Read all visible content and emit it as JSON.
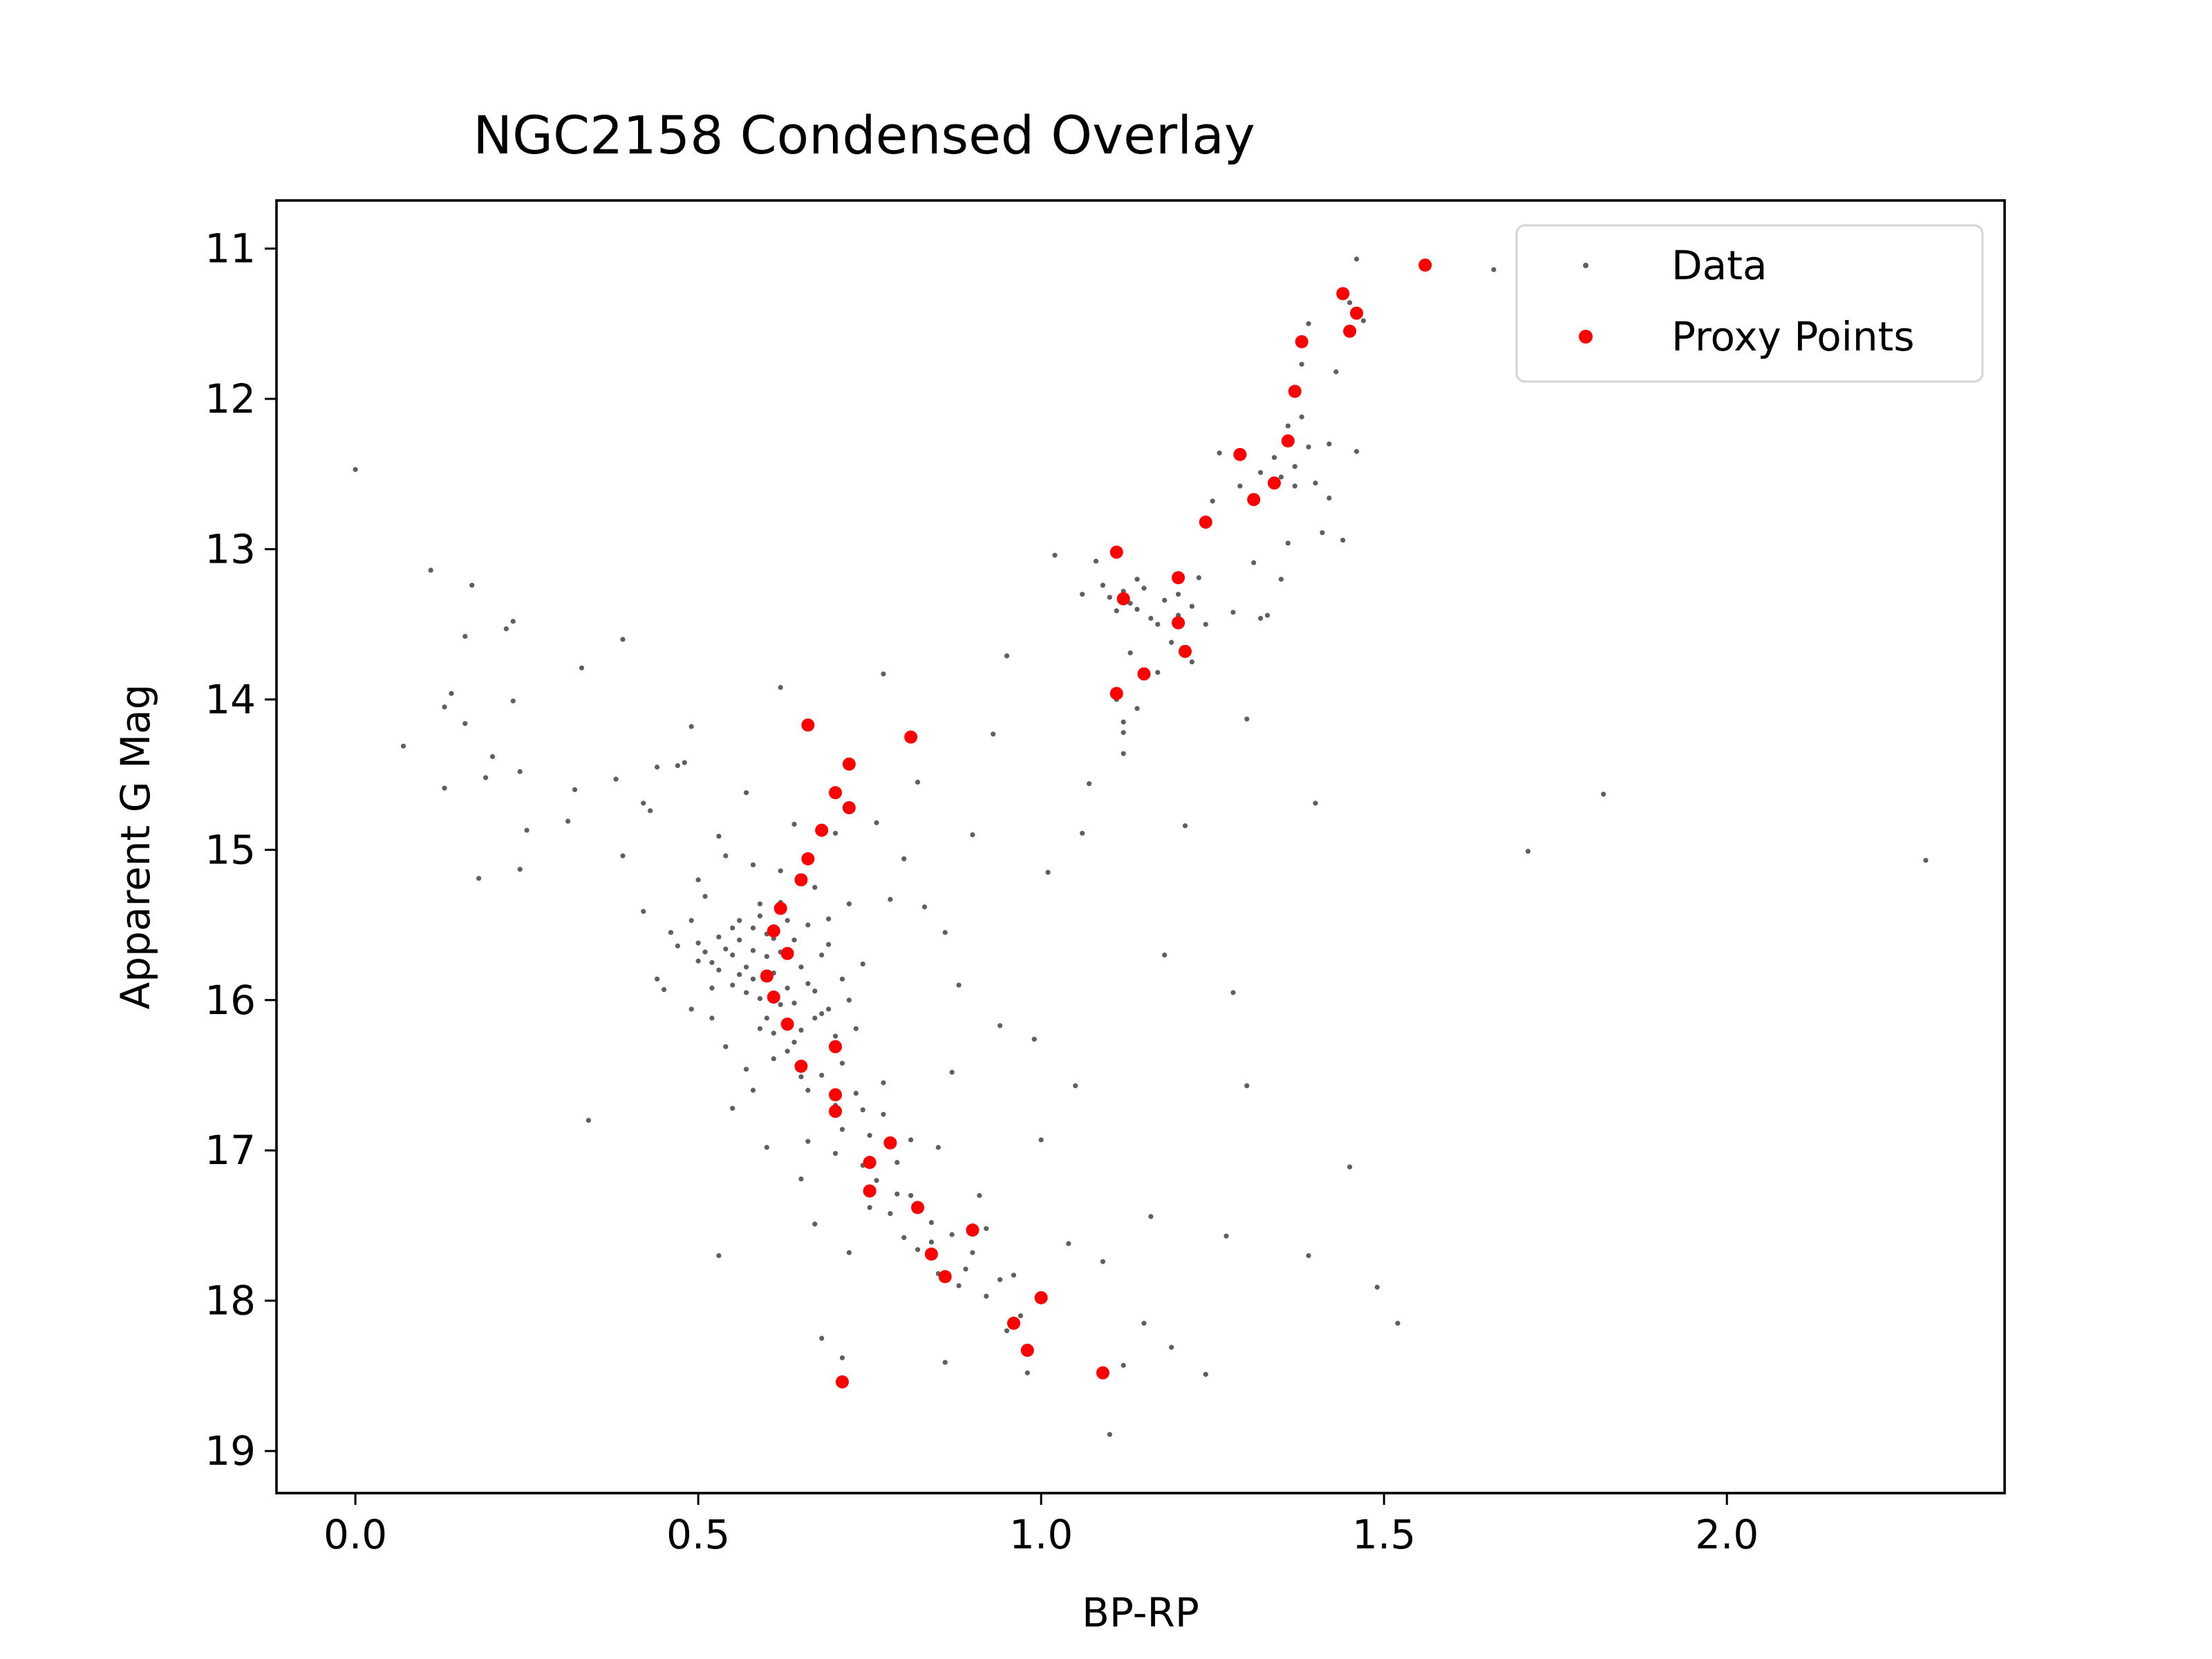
{
  "chart_data": {
    "type": "scatter",
    "title": "NGC2158 Condensed Overlay",
    "xlabel": "BP-RP",
    "ylabel": "Apparent G Mag",
    "xlim": [
      -0.115,
      2.405
    ],
    "ylim": [
      19.28,
      10.68
    ],
    "y_inverted": true,
    "grid": false,
    "legend_placement": "top-right",
    "xticks": [
      0.0,
      0.5,
      1.0,
      1.5,
      2.0
    ],
    "xtick_labels": [
      "0.0",
      "0.5",
      "1.0",
      "1.5",
      "2.0"
    ],
    "yticks": [
      11,
      12,
      13,
      14,
      15,
      16,
      17,
      18,
      19
    ],
    "ytick_labels": [
      "11",
      "12",
      "13",
      "14",
      "15",
      "16",
      "17",
      "18",
      "19"
    ],
    "colors": {
      "data": "#5f5f5f",
      "proxy": "#ff0000",
      "axes": "#000000"
    },
    "series": [
      {
        "name": "Data",
        "marker": "small-dot",
        "color": "#5f5f5f",
        "points": [
          [
            0.0,
            12.47
          ],
          [
            0.07,
            14.31
          ],
          [
            0.11,
            13.14
          ],
          [
            0.13,
            14.05
          ],
          [
            0.14,
            13.96
          ],
          [
            0.13,
            14.59
          ],
          [
            0.16,
            13.58
          ],
          [
            0.16,
            14.16
          ],
          [
            0.17,
            13.24
          ],
          [
            0.18,
            15.19
          ],
          [
            0.2,
            14.38
          ],
          [
            0.19,
            14.52
          ],
          [
            0.22,
            13.53
          ],
          [
            0.23,
            13.48
          ],
          [
            0.23,
            14.01
          ],
          [
            0.24,
            14.48
          ],
          [
            0.24,
            15.13
          ],
          [
            0.25,
            14.87
          ],
          [
            0.31,
            14.81
          ],
          [
            0.32,
            14.6
          ],
          [
            0.33,
            13.79
          ],
          [
            0.34,
            16.8
          ],
          [
            0.38,
            14.53
          ],
          [
            0.39,
            15.04
          ],
          [
            0.39,
            13.6
          ],
          [
            0.42,
            14.69
          ],
          [
            0.42,
            15.41
          ],
          [
            0.43,
            14.74
          ],
          [
            0.44,
            15.86
          ],
          [
            0.44,
            14.45
          ],
          [
            0.45,
            15.93
          ],
          [
            0.46,
            15.55
          ],
          [
            0.47,
            14.44
          ],
          [
            0.47,
            15.64
          ],
          [
            0.48,
            14.42
          ],
          [
            0.49,
            14.18
          ],
          [
            0.49,
            15.47
          ],
          [
            0.49,
            16.06
          ],
          [
            0.5,
            15.2
          ],
          [
            0.5,
            15.74
          ],
          [
            0.51,
            15.31
          ],
          [
            0.52,
            16.12
          ],
          [
            0.52,
            15.92
          ],
          [
            0.53,
            14.91
          ],
          [
            0.53,
            17.7
          ],
          [
            0.54,
            15.04
          ],
          [
            0.54,
            16.31
          ],
          [
            0.55,
            16.72
          ],
          [
            0.55,
            15.52
          ],
          [
            0.56,
            15.83
          ],
          [
            0.57,
            14.62
          ],
          [
            0.57,
            16.46
          ],
          [
            0.58,
            15.1
          ],
          [
            0.58,
            16.6
          ],
          [
            0.59,
            15.36
          ],
          [
            0.59,
            16.19
          ],
          [
            0.6,
            15.71
          ],
          [
            0.6,
            16.98
          ],
          [
            0.61,
            15.59
          ],
          [
            0.61,
            16.39
          ],
          [
            0.62,
            15.14
          ],
          [
            0.62,
            16.03
          ],
          [
            0.62,
            13.92
          ],
          [
            0.63,
            15.47
          ],
          [
            0.64,
            16.28
          ],
          [
            0.64,
            14.83
          ],
          [
            0.65,
            16.51
          ],
          [
            0.65,
            17.19
          ],
          [
            0.66,
            15.89
          ],
          [
            0.66,
            16.94
          ],
          [
            0.67,
            15.25
          ],
          [
            0.67,
            17.49
          ],
          [
            0.68,
            18.25
          ],
          [
            0.68,
            16.09
          ],
          [
            0.69,
            15.63
          ],
          [
            0.7,
            17.02
          ],
          [
            0.7,
            14.89
          ],
          [
            0.71,
            18.38
          ],
          [
            0.71,
            16.42
          ],
          [
            0.72,
            15.36
          ],
          [
            0.72,
            17.68
          ],
          [
            0.73,
            16.19
          ],
          [
            0.74,
            15.76
          ],
          [
            0.74,
            16.73
          ],
          [
            0.75,
            17.38
          ],
          [
            0.76,
            14.82
          ],
          [
            0.77,
            13.83
          ],
          [
            0.77,
            16.55
          ],
          [
            0.78,
            15.33
          ],
          [
            0.79,
            17.29
          ],
          [
            0.8,
            15.06
          ],
          [
            0.81,
            16.93
          ],
          [
            0.82,
            14.55
          ],
          [
            0.83,
            15.38
          ],
          [
            0.84,
            17.61
          ],
          [
            0.85,
            16.98
          ],
          [
            0.86,
            15.55
          ],
          [
            0.86,
            18.41
          ],
          [
            0.87,
            16.48
          ],
          [
            0.88,
            15.9
          ],
          [
            0.89,
            17.79
          ],
          [
            0.9,
            14.9
          ],
          [
            0.91,
            17.3
          ],
          [
            0.92,
            17.97
          ],
          [
            0.93,
            14.23
          ],
          [
            0.94,
            16.17
          ],
          [
            0.95,
            13.71
          ],
          [
            0.96,
            17.83
          ],
          [
            0.97,
            18.1
          ],
          [
            0.98,
            18.48
          ],
          [
            0.99,
            16.26
          ],
          [
            1.0,
            16.93
          ],
          [
            1.01,
            15.15
          ],
          [
            1.02,
            13.04
          ],
          [
            1.04,
            17.62
          ],
          [
            1.05,
            16.57
          ],
          [
            1.06,
            14.89
          ],
          [
            1.07,
            14.56
          ],
          [
            1.08,
            13.08
          ],
          [
            1.09,
            17.74
          ],
          [
            1.1,
            18.89
          ],
          [
            1.11,
            13.41
          ],
          [
            1.12,
            14.15
          ],
          [
            1.12,
            18.43
          ],
          [
            1.13,
            13.69
          ],
          [
            1.14,
            13.2
          ],
          [
            1.15,
            18.15
          ],
          [
            1.16,
            17.44
          ],
          [
            1.17,
            13.5
          ],
          [
            1.18,
            15.7
          ],
          [
            1.19,
            18.31
          ],
          [
            1.2,
            13.3
          ],
          [
            1.21,
            14.84
          ],
          [
            1.22,
            13.75
          ],
          [
            1.23,
            13.19
          ],
          [
            1.24,
            18.49
          ],
          [
            1.25,
            12.68
          ],
          [
            1.26,
            12.36
          ],
          [
            1.27,
            17.57
          ],
          [
            1.28,
            15.95
          ],
          [
            1.29,
            12.58
          ],
          [
            1.3,
            14.13
          ],
          [
            1.3,
            16.57
          ],
          [
            1.31,
            13.09
          ],
          [
            1.32,
            12.49
          ],
          [
            1.33,
            13.44
          ],
          [
            1.34,
            12.39
          ],
          [
            1.35,
            13.2
          ],
          [
            1.36,
            12.96
          ],
          [
            1.37,
            12.45
          ],
          [
            1.38,
            11.77
          ],
          [
            1.39,
            17.7
          ],
          [
            1.4,
            14.69
          ],
          [
            1.41,
            12.89
          ],
          [
            1.42,
            12.66
          ],
          [
            1.43,
            11.82
          ],
          [
            1.44,
            12.94
          ],
          [
            1.45,
            17.11
          ],
          [
            1.46,
            11.07
          ],
          [
            1.46,
            12.35
          ],
          [
            1.49,
            17.91
          ],
          [
            1.52,
            18.15
          ],
          [
            1.66,
            11.14
          ],
          [
            1.71,
            15.01
          ],
          [
            1.82,
            14.63
          ],
          [
            2.29,
            15.07
          ],
          [
            0.5,
            15.62
          ],
          [
            0.51,
            15.68
          ],
          [
            0.52,
            15.75
          ],
          [
            0.53,
            15.8
          ],
          [
            0.53,
            15.58
          ],
          [
            0.54,
            15.66
          ],
          [
            0.55,
            15.7
          ],
          [
            0.55,
            15.9
          ],
          [
            0.56,
            15.47
          ],
          [
            0.56,
            15.6
          ],
          [
            0.57,
            15.78
          ],
          [
            0.57,
            15.95
          ],
          [
            0.58,
            15.52
          ],
          [
            0.58,
            15.67
          ],
          [
            0.58,
            15.86
          ],
          [
            0.59,
            15.44
          ],
          [
            0.59,
            15.99
          ],
          [
            0.6,
            15.56
          ],
          [
            0.6,
            16.12
          ],
          [
            0.61,
            15.82
          ],
          [
            0.61,
            16.22
          ],
          [
            0.62,
            15.68
          ],
          [
            0.62,
            15.35
          ],
          [
            0.63,
            15.92
          ],
          [
            0.63,
            16.34
          ],
          [
            0.64,
            15.6
          ],
          [
            0.64,
            16.02
          ],
          [
            0.65,
            15.78
          ],
          [
            0.65,
            16.2
          ],
          [
            0.66,
            15.5
          ],
          [
            0.66,
            16.6
          ],
          [
            0.67,
            15.94
          ],
          [
            0.67,
            16.12
          ],
          [
            0.68,
            15.7
          ],
          [
            0.68,
            16.5
          ],
          [
            0.69,
            16.06
          ],
          [
            0.69,
            15.46
          ],
          [
            0.7,
            16.24
          ],
          [
            0.7,
            16.7
          ],
          [
            0.71,
            15.86
          ],
          [
            0.71,
            16.86
          ],
          [
            0.72,
            16.0
          ],
          [
            0.73,
            16.62
          ],
          [
            0.74,
            17.1
          ],
          [
            0.75,
            16.9
          ],
          [
            0.76,
            17.2
          ],
          [
            0.77,
            16.76
          ],
          [
            0.78,
            17.42
          ],
          [
            0.79,
            17.08
          ],
          [
            0.8,
            17.58
          ],
          [
            0.81,
            17.3
          ],
          [
            0.82,
            17.66
          ],
          [
            0.84,
            17.48
          ],
          [
            0.85,
            17.82
          ],
          [
            0.87,
            17.56
          ],
          [
            0.88,
            17.9
          ],
          [
            0.9,
            17.68
          ],
          [
            0.92,
            17.52
          ],
          [
            0.94,
            17.86
          ],
          [
            0.95,
            18.2
          ],
          [
            1.12,
            13.28
          ],
          [
            1.13,
            13.36
          ],
          [
            1.14,
            13.4
          ],
          [
            1.15,
            13.26
          ],
          [
            1.16,
            13.46
          ],
          [
            1.1,
            13.32
          ],
          [
            1.18,
            13.34
          ],
          [
            1.2,
            13.44
          ],
          [
            1.22,
            13.38
          ],
          [
            1.09,
            13.24
          ],
          [
            1.06,
            13.3
          ],
          [
            1.24,
            13.5
          ],
          [
            1.28,
            13.42
          ],
          [
            1.32,
            13.46
          ],
          [
            1.11,
            14.0
          ],
          [
            1.12,
            14.22
          ],
          [
            1.12,
            14.36
          ],
          [
            1.14,
            14.06
          ],
          [
            1.17,
            13.82
          ],
          [
            1.19,
            13.62
          ],
          [
            1.35,
            12.52
          ],
          [
            1.37,
            12.58
          ],
          [
            1.39,
            12.32
          ],
          [
            1.4,
            12.56
          ],
          [
            1.42,
            12.3
          ],
          [
            1.39,
            11.5
          ],
          [
            1.45,
            11.36
          ],
          [
            1.47,
            11.48
          ],
          [
            1.36,
            12.18
          ],
          [
            1.38,
            12.12
          ]
        ]
      },
      {
        "name": "Proxy Points",
        "marker": "dot",
        "color": "#ff0000",
        "points": [
          [
            1.56,
            11.11
          ],
          [
            1.44,
            11.3
          ],
          [
            1.46,
            11.43
          ],
          [
            1.45,
            11.55
          ],
          [
            1.38,
            11.62
          ],
          [
            1.37,
            11.95
          ],
          [
            1.36,
            12.28
          ],
          [
            1.29,
            12.37
          ],
          [
            1.34,
            12.56
          ],
          [
            1.31,
            12.67
          ],
          [
            1.24,
            12.82
          ],
          [
            1.11,
            13.02
          ],
          [
            1.2,
            13.19
          ],
          [
            1.12,
            13.33
          ],
          [
            1.2,
            13.49
          ],
          [
            1.21,
            13.68
          ],
          [
            1.15,
            13.83
          ],
          [
            1.11,
            13.96
          ],
          [
            0.66,
            14.17
          ],
          [
            0.81,
            14.25
          ],
          [
            0.72,
            14.43
          ],
          [
            0.7,
            14.62
          ],
          [
            0.72,
            14.72
          ],
          [
            0.68,
            14.87
          ],
          [
            0.66,
            15.06
          ],
          [
            0.65,
            15.2
          ],
          [
            0.62,
            15.39
          ],
          [
            0.61,
            15.54
          ],
          [
            0.63,
            15.69
          ],
          [
            0.6,
            15.84
          ],
          [
            0.61,
            15.98
          ],
          [
            0.63,
            16.16
          ],
          [
            0.7,
            16.31
          ],
          [
            0.65,
            16.44
          ],
          [
            0.7,
            16.63
          ],
          [
            0.7,
            16.74
          ],
          [
            0.78,
            16.95
          ],
          [
            0.75,
            17.08
          ],
          [
            0.75,
            17.27
          ],
          [
            0.82,
            17.38
          ],
          [
            0.9,
            17.53
          ],
          [
            0.84,
            17.69
          ],
          [
            0.86,
            17.84
          ],
          [
            1.0,
            17.98
          ],
          [
            0.96,
            18.15
          ],
          [
            0.98,
            18.33
          ],
          [
            1.09,
            18.48
          ],
          [
            0.71,
            18.54
          ]
        ]
      }
    ]
  }
}
